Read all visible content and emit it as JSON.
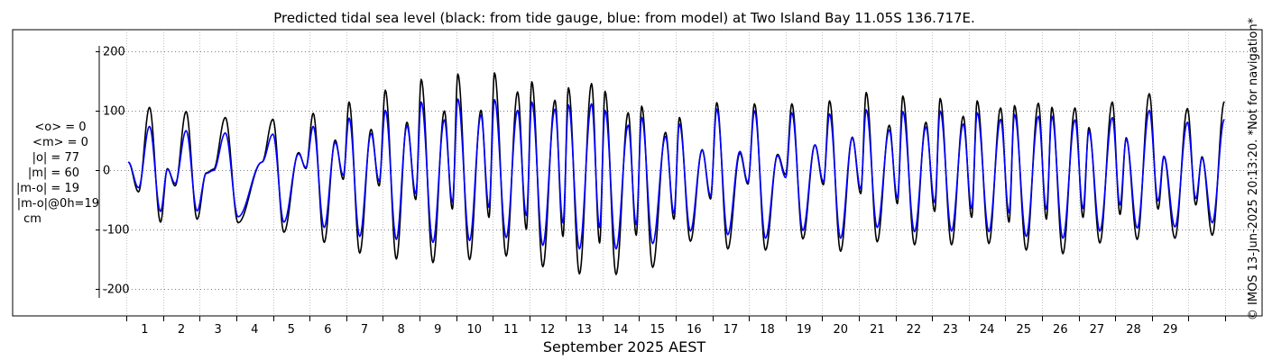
{
  "chart_data": {
    "type": "line",
    "title": "Predicted tidal sea level (black: from tide gauge, blue: from model) at Two Island Bay 11.05S 136.717E.",
    "xlabel": "September 2025 AEST",
    "ylabel": "",
    "x_ticks": [
      "1",
      "2",
      "3",
      "4",
      "5",
      "6",
      "7",
      "8",
      "9",
      "10",
      "11",
      "12",
      "13",
      "14",
      "15",
      "16",
      "17",
      "18",
      "19",
      "20",
      "21",
      "22",
      "23",
      "24",
      "25",
      "26",
      "27",
      "28",
      "29"
    ],
    "y_ticks": [
      200,
      100,
      0,
      -100,
      -200
    ],
    "y_tick_labels": [
      "200",
      "100",
      "0",
      "-100",
      "-200"
    ],
    "xlim": [
      -0.25,
      30.0
    ],
    "ylim": [
      -235,
      225
    ],
    "grid": true,
    "series": [
      {
        "name": "tide gauge",
        "color": "#000000"
      },
      {
        "name": "model",
        "color": "#0000ff"
      }
    ],
    "peaks": [
      {
        "day": 0.05,
        "gauge": 13,
        "model": 13
      },
      {
        "day": 0.33,
        "gauge": -37,
        "model": -30
      },
      {
        "day": 0.63,
        "gauge": 105,
        "model": 73
      },
      {
        "day": 0.93,
        "gauge": -88,
        "model": -70
      },
      {
        "day": 1.12,
        "gauge": 2,
        "model": 1
      },
      {
        "day": 1.33,
        "gauge": -27,
        "model": -23
      },
      {
        "day": 1.63,
        "gauge": 98,
        "model": 66
      },
      {
        "day": 1.93,
        "gauge": -83,
        "model": -69
      },
      {
        "day": 2.18,
        "gauge": -5,
        "model": -6
      },
      {
        "day": 2.38,
        "gauge": 1,
        "model": -1
      },
      {
        "day": 2.7,
        "gauge": 88,
        "model": 62
      },
      {
        "day": 3.05,
        "gauge": -89,
        "model": -79
      },
      {
        "day": 3.7,
        "gauge": 13,
        "model": 13
      },
      {
        "day": 4.0,
        "gauge": 85,
        "model": 60
      },
      {
        "day": 4.3,
        "gauge": -105,
        "model": -88
      },
      {
        "day": 4.7,
        "gauge": 29,
        "model": 27
      },
      {
        "day": 4.9,
        "gauge": 2,
        "model": 4
      },
      {
        "day": 5.1,
        "gauge": 95,
        "model": 73
      },
      {
        "day": 5.4,
        "gauge": -122,
        "model": -97
      },
      {
        "day": 5.7,
        "gauge": 50,
        "model": 46
      },
      {
        "day": 5.92,
        "gauge": -16,
        "model": -9
      },
      {
        "day": 6.08,
        "gauge": 114,
        "model": 87
      },
      {
        "day": 6.37,
        "gauge": -140,
        "model": -112
      },
      {
        "day": 6.68,
        "gauge": 68,
        "model": 61
      },
      {
        "day": 6.9,
        "gauge": -27,
        "model": -19
      },
      {
        "day": 7.07,
        "gauge": 134,
        "model": 100
      },
      {
        "day": 7.37,
        "gauge": -150,
        "model": -117
      },
      {
        "day": 7.66,
        "gauge": 80,
        "model": 74
      },
      {
        "day": 7.9,
        "gauge": -50,
        "model": -40
      },
      {
        "day": 8.05,
        "gauge": 152,
        "model": 114
      },
      {
        "day": 8.37,
        "gauge": -156,
        "model": -122
      },
      {
        "day": 8.68,
        "gauge": 99,
        "model": 84
      },
      {
        "day": 8.9,
        "gauge": -66,
        "model": -54
      },
      {
        "day": 9.05,
        "gauge": 161,
        "model": 119
      },
      {
        "day": 9.37,
        "gauge": -151,
        "model": -119
      },
      {
        "day": 9.68,
        "gauge": 100,
        "model": 92
      },
      {
        "day": 9.9,
        "gauge": -80,
        "model": -63
      },
      {
        "day": 10.05,
        "gauge": 163,
        "model": 118
      },
      {
        "day": 10.37,
        "gauge": -145,
        "model": -114
      },
      {
        "day": 10.68,
        "gauge": 131,
        "model": 100
      },
      {
        "day": 10.92,
        "gauge": -100,
        "model": -77
      },
      {
        "day": 11.07,
        "gauge": 148,
        "model": 114
      },
      {
        "day": 11.37,
        "gauge": -163,
        "model": -127
      },
      {
        "day": 11.7,
        "gauge": 117,
        "model": 102
      },
      {
        "day": 11.92,
        "gauge": -112,
        "model": -89
      },
      {
        "day": 12.07,
        "gauge": 138,
        "model": 109
      },
      {
        "day": 12.37,
        "gauge": -175,
        "model": -133
      },
      {
        "day": 12.7,
        "gauge": 145,
        "model": 111
      },
      {
        "day": 12.92,
        "gauge": -123,
        "model": -97
      },
      {
        "day": 13.07,
        "gauge": 132,
        "model": 100
      },
      {
        "day": 13.37,
        "gauge": -176,
        "model": -133
      },
      {
        "day": 13.7,
        "gauge": 96,
        "model": 75
      },
      {
        "day": 13.92,
        "gauge": -110,
        "model": -92
      },
      {
        "day": 14.07,
        "gauge": 107,
        "model": 88
      },
      {
        "day": 14.37,
        "gauge": -164,
        "model": -124
      },
      {
        "day": 14.72,
        "gauge": 63,
        "model": 56
      },
      {
        "day": 14.95,
        "gauge": -83,
        "model": -73
      },
      {
        "day": 15.1,
        "gauge": 88,
        "model": 77
      },
      {
        "day": 15.4,
        "gauge": -120,
        "model": -103
      },
      {
        "day": 15.72,
        "gauge": 34,
        "model": 33
      },
      {
        "day": 15.95,
        "gauge": -49,
        "model": -44
      },
      {
        "day": 16.12,
        "gauge": 113,
        "model": 102
      },
      {
        "day": 16.42,
        "gauge": -133,
        "model": -109
      },
      {
        "day": 16.75,
        "gauge": 28,
        "model": 31
      },
      {
        "day": 16.97,
        "gauge": -24,
        "model": -21
      },
      {
        "day": 17.15,
        "gauge": 111,
        "model": 99
      },
      {
        "day": 17.45,
        "gauge": -135,
        "model": -115
      },
      {
        "day": 17.78,
        "gauge": 26,
        "model": 24
      },
      {
        "day": 18.0,
        "gauge": -8,
        "model": -13
      },
      {
        "day": 18.17,
        "gauge": 111,
        "model": 96
      },
      {
        "day": 18.47,
        "gauge": -116,
        "model": -102
      },
      {
        "day": 18.8,
        "gauge": 42,
        "model": 42
      },
      {
        "day": 19.03,
        "gauge": -25,
        "model": -20
      },
      {
        "day": 19.2,
        "gauge": 116,
        "model": 94
      },
      {
        "day": 19.5,
        "gauge": -137,
        "model": -115
      },
      {
        "day": 19.82,
        "gauge": 55,
        "model": 54
      },
      {
        "day": 20.05,
        "gauge": -40,
        "model": -32
      },
      {
        "day": 20.2,
        "gauge": 130,
        "model": 101
      },
      {
        "day": 20.5,
        "gauge": -121,
        "model": -97
      },
      {
        "day": 20.83,
        "gauge": 75,
        "model": 67
      },
      {
        "day": 21.05,
        "gauge": -57,
        "model": -47
      },
      {
        "day": 21.2,
        "gauge": 124,
        "model": 98
      },
      {
        "day": 21.52,
        "gauge": -126,
        "model": -104
      },
      {
        "day": 21.83,
        "gauge": 80,
        "model": 72
      },
      {
        "day": 22.07,
        "gauge": -70,
        "model": -55
      },
      {
        "day": 22.22,
        "gauge": 120,
        "model": 99
      },
      {
        "day": 22.53,
        "gauge": -126,
        "model": -103
      },
      {
        "day": 22.85,
        "gauge": 90,
        "model": 77
      },
      {
        "day": 23.08,
        "gauge": -80,
        "model": -65
      },
      {
        "day": 23.23,
        "gauge": 116,
        "model": 96
      },
      {
        "day": 23.55,
        "gauge": -124,
        "model": -104
      },
      {
        "day": 23.87,
        "gauge": 104,
        "model": 85
      },
      {
        "day": 24.1,
        "gauge": -88,
        "model": -72
      },
      {
        "day": 24.25,
        "gauge": 108,
        "model": 93
      },
      {
        "day": 24.57,
        "gauge": -135,
        "model": -112
      },
      {
        "day": 24.9,
        "gauge": 112,
        "model": 90
      },
      {
        "day": 25.12,
        "gauge": -83,
        "model": -66
      },
      {
        "day": 25.27,
        "gauge": 105,
        "model": 90
      },
      {
        "day": 25.57,
        "gauge": -141,
        "model": -115
      },
      {
        "day": 25.9,
        "gauge": 104,
        "model": 84
      },
      {
        "day": 26.12,
        "gauge": -80,
        "model": -65
      },
      {
        "day": 26.28,
        "gauge": 71,
        "model": 65
      },
      {
        "day": 26.58,
        "gauge": -123,
        "model": -103
      },
      {
        "day": 26.92,
        "gauge": 114,
        "model": 88
      },
      {
        "day": 27.13,
        "gauge": -75,
        "model": -59
      },
      {
        "day": 27.3,
        "gauge": 54,
        "model": 52
      },
      {
        "day": 27.6,
        "gauge": -117,
        "model": -98
      },
      {
        "day": 27.93,
        "gauge": 128,
        "model": 100
      },
      {
        "day": 28.17,
        "gauge": -66,
        "model": -52
      },
      {
        "day": 28.33,
        "gauge": 22,
        "model": 23
      },
      {
        "day": 28.63,
        "gauge": -115,
        "model": -96
      },
      {
        "day": 28.97,
        "gauge": 103,
        "model": 80
      },
      {
        "day": 29.2,
        "gauge": -59,
        "model": -48
      },
      {
        "day": 29.37,
        "gauge": 22,
        "model": 20
      },
      {
        "day": 29.65,
        "gauge": -110,
        "model": -89
      },
      {
        "day": 29.98,
        "gauge": 115,
        "model": 85
      }
    ],
    "stats": [
      "<o> = 0",
      "<m> = 0",
      "|o| = 77",
      "|m| = 60",
      "|m-o| = 19",
      "|m-o|@0h=19",
      "cm"
    ],
    "side_note": "© IMOS 13-Jun-2025 20:13:20. *Not for navigation*"
  }
}
